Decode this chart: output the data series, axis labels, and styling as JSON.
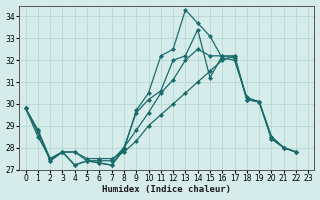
{
  "xlabel": "Humidex (Indice chaleur)",
  "background_color": "#d6ecea",
  "grid_color": "#b0d4d0",
  "line_color": "#1a6b6b",
  "xlim": [
    -0.5,
    23.5
  ],
  "ylim": [
    27,
    34.5
  ],
  "yticks": [
    27,
    28,
    29,
    30,
    31,
    32,
    33,
    34
  ],
  "xticks": [
    0,
    1,
    2,
    3,
    4,
    5,
    6,
    7,
    8,
    9,
    10,
    11,
    12,
    13,
    14,
    15,
    16,
    17,
    18,
    19,
    20,
    21,
    22,
    23
  ],
  "x": [
    0,
    1,
    2,
    3,
    4,
    5,
    6,
    7,
    8,
    9,
    10,
    11,
    12,
    13,
    14,
    15,
    16,
    17,
    18,
    19,
    20,
    21,
    22
  ],
  "s1_y": [
    29.8,
    28.7,
    27.4,
    27.8,
    27.2,
    27.4,
    27.3,
    27.2,
    27.9,
    29.7,
    30.5,
    32.2,
    32.5,
    34.3,
    33.7,
    33.1,
    32.1,
    32.0,
    30.3,
    30.1,
    28.5,
    28.0,
    27.8
  ],
  "s2_y": [
    29.8,
    28.8,
    27.4,
    27.8,
    27.2,
    27.4,
    27.3,
    27.2,
    28.0,
    29.6,
    30.2,
    30.6,
    32.0,
    32.2,
    33.4,
    31.2,
    32.2,
    32.1,
    30.2,
    30.1,
    28.5,
    28.0,
    27.8
  ],
  "s3_y": [
    29.8,
    28.8,
    27.5,
    27.8,
    27.8,
    27.4,
    27.4,
    27.4,
    28.0,
    28.8,
    29.6,
    30.5,
    31.1,
    32.0,
    32.5,
    32.2,
    32.2,
    32.2,
    30.2,
    30.1,
    28.4,
    28.0,
    27.8
  ],
  "s4_y": [
    29.8,
    28.5,
    27.5,
    27.8,
    27.8,
    27.5,
    27.5,
    27.5,
    27.8,
    28.3,
    29.0,
    29.5,
    30.0,
    30.5,
    31.0,
    31.5,
    32.0,
    32.2,
    30.2,
    30.1,
    28.4,
    28.0,
    27.8
  ]
}
